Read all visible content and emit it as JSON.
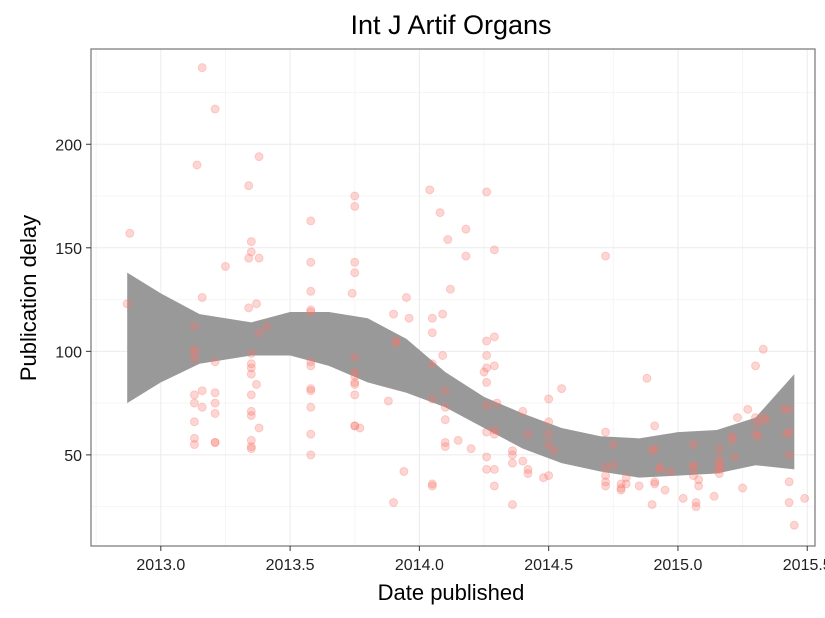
{
  "chart_data": {
    "type": "scatter",
    "title": "Int J Artif Organs",
    "xlabel": "Date published",
    "ylabel": "Publication delay",
    "xlim": [
      2012.73,
      2015.53
    ],
    "ylim": [
      6,
      246
    ],
    "xticks": [
      2013.0,
      2013.5,
      2014.0,
      2014.5,
      2015.0,
      2015.5
    ],
    "xtick_labels": [
      "2013.0",
      "2013.5",
      "2014.0",
      "2014.5",
      "2015.0",
      "2015.5"
    ],
    "yticks": [
      50,
      100,
      150,
      200
    ],
    "ytick_labels": [
      "50",
      "100",
      "150",
      "200"
    ],
    "grid": true,
    "point_color": "#f8766d",
    "band_color": "#999999",
    "points": [
      [
        2012.87,
        123
      ],
      [
        2012.88,
        157
      ],
      [
        2013.13,
        55
      ],
      [
        2013.13,
        58
      ],
      [
        2013.13,
        66
      ],
      [
        2013.13,
        75
      ],
      [
        2013.13,
        79
      ],
      [
        2013.13,
        96
      ],
      [
        2013.13,
        99
      ],
      [
        2013.13,
        101
      ],
      [
        2013.13,
        112
      ],
      [
        2013.14,
        190
      ],
      [
        2013.16,
        237
      ],
      [
        2013.16,
        126
      ],
      [
        2013.16,
        81
      ],
      [
        2013.16,
        73
      ],
      [
        2013.21,
        217
      ],
      [
        2013.21,
        95
      ],
      [
        2013.21,
        80
      ],
      [
        2013.21,
        75
      ],
      [
        2013.21,
        70
      ],
      [
        2013.21,
        56
      ],
      [
        2013.21,
        56
      ],
      [
        2013.25,
        141
      ],
      [
        2013.34,
        180
      ],
      [
        2013.35,
        153
      ],
      [
        2013.35,
        148
      ],
      [
        2013.34,
        145
      ],
      [
        2013.34,
        121
      ],
      [
        2013.35,
        99
      ],
      [
        2013.35,
        94
      ],
      [
        2013.35,
        92
      ],
      [
        2013.35,
        89
      ],
      [
        2013.35,
        79
      ],
      [
        2013.35,
        71
      ],
      [
        2013.35,
        69
      ],
      [
        2013.35,
        57
      ],
      [
        2013.35,
        54
      ],
      [
        2013.35,
        53
      ],
      [
        2013.37,
        123
      ],
      [
        2013.37,
        84
      ],
      [
        2013.38,
        194
      ],
      [
        2013.38,
        145
      ],
      [
        2013.38,
        109
      ],
      [
        2013.38,
        63
      ],
      [
        2013.41,
        112
      ],
      [
        2013.58,
        163
      ],
      [
        2013.58,
        143
      ],
      [
        2013.58,
        129
      ],
      [
        2013.58,
        120
      ],
      [
        2013.58,
        119
      ],
      [
        2013.58,
        95
      ],
      [
        2013.58,
        93
      ],
      [
        2013.58,
        82
      ],
      [
        2013.58,
        81
      ],
      [
        2013.58,
        73
      ],
      [
        2013.58,
        60
      ],
      [
        2013.58,
        50
      ],
      [
        2013.74,
        128
      ],
      [
        2013.75,
        175
      ],
      [
        2013.75,
        170
      ],
      [
        2013.75,
        143
      ],
      [
        2013.75,
        138
      ],
      [
        2013.75,
        97
      ],
      [
        2013.75,
        90
      ],
      [
        2013.75,
        88
      ],
      [
        2013.75,
        85
      ],
      [
        2013.75,
        84
      ],
      [
        2013.75,
        79
      ],
      [
        2013.75,
        64
      ],
      [
        2013.75,
        64
      ],
      [
        2013.77,
        63
      ],
      [
        2013.88,
        76
      ],
      [
        2013.9,
        27
      ],
      [
        2013.9,
        118
      ],
      [
        2013.91,
        105
      ],
      [
        2013.91,
        104
      ],
      [
        2013.94,
        42
      ],
      [
        2013.95,
        126
      ],
      [
        2013.96,
        116
      ],
      [
        2014.04,
        178
      ],
      [
        2014.05,
        116
      ],
      [
        2014.05,
        109
      ],
      [
        2014.05,
        94
      ],
      [
        2014.05,
        77
      ],
      [
        2014.05,
        36
      ],
      [
        2014.05,
        35
      ],
      [
        2014.08,
        167
      ],
      [
        2014.09,
        118
      ],
      [
        2014.09,
        98
      ],
      [
        2014.1,
        81
      ],
      [
        2014.1,
        73
      ],
      [
        2014.1,
        67
      ],
      [
        2014.1,
        56
      ],
      [
        2014.1,
        54
      ],
      [
        2014.11,
        154
      ],
      [
        2014.12,
        130
      ],
      [
        2014.15,
        57
      ],
      [
        2014.18,
        159
      ],
      [
        2014.18,
        146
      ],
      [
        2014.2,
        53
      ],
      [
        2014.26,
        177
      ],
      [
        2014.26,
        105
      ],
      [
        2014.26,
        98
      ],
      [
        2014.26,
        92
      ],
      [
        2014.25,
        90
      ],
      [
        2014.26,
        85
      ],
      [
        2014.26,
        74
      ],
      [
        2014.26,
        61
      ],
      [
        2014.26,
        49
      ],
      [
        2014.26,
        43
      ],
      [
        2014.29,
        149
      ],
      [
        2014.29,
        107
      ],
      [
        2014.29,
        93
      ],
      [
        2014.29,
        62
      ],
      [
        2014.29,
        60
      ],
      [
        2014.29,
        43
      ],
      [
        2014.29,
        35
      ],
      [
        2014.3,
        75
      ],
      [
        2014.36,
        46
      ],
      [
        2014.36,
        50
      ],
      [
        2014.36,
        52
      ],
      [
        2014.36,
        26
      ],
      [
        2014.4,
        71
      ],
      [
        2014.4,
        47
      ],
      [
        2014.42,
        60
      ],
      [
        2014.42,
        43
      ],
      [
        2014.42,
        41
      ],
      [
        2014.48,
        39
      ],
      [
        2014.5,
        77
      ],
      [
        2014.5,
        66
      ],
      [
        2014.5,
        60
      ],
      [
        2014.5,
        55
      ],
      [
        2014.5,
        40
      ],
      [
        2014.52,
        52
      ],
      [
        2014.55,
        82
      ],
      [
        2014.72,
        146
      ],
      [
        2014.72,
        61
      ],
      [
        2014.72,
        44
      ],
      [
        2014.72,
        40
      ],
      [
        2014.72,
        37
      ],
      [
        2014.72,
        35
      ],
      [
        2014.75,
        55
      ],
      [
        2014.75,
        45
      ],
      [
        2014.78,
        36
      ],
      [
        2014.78,
        34
      ],
      [
        2014.78,
        33
      ],
      [
        2014.8,
        39
      ],
      [
        2014.8,
        36
      ],
      [
        2014.85,
        35
      ],
      [
        2014.88,
        87
      ],
      [
        2014.9,
        26
      ],
      [
        2014.9,
        52
      ],
      [
        2014.91,
        64
      ],
      [
        2014.91,
        53
      ],
      [
        2014.91,
        37
      ],
      [
        2014.91,
        36
      ],
      [
        2014.93,
        44
      ],
      [
        2014.93,
        43
      ],
      [
        2014.95,
        33
      ],
      [
        2014.97,
        42
      ],
      [
        2015.02,
        29
      ],
      [
        2015.06,
        55
      ],
      [
        2015.06,
        45
      ],
      [
        2015.06,
        44
      ],
      [
        2015.06,
        40
      ],
      [
        2015.07,
        27
      ],
      [
        2015.07,
        25
      ],
      [
        2015.08,
        38
      ],
      [
        2015.08,
        35
      ],
      [
        2015.14,
        30
      ],
      [
        2015.16,
        53
      ],
      [
        2015.16,
        48
      ],
      [
        2015.16,
        46
      ],
      [
        2015.16,
        44
      ],
      [
        2015.16,
        43
      ],
      [
        2015.16,
        41
      ],
      [
        2015.21,
        59
      ],
      [
        2015.21,
        57
      ],
      [
        2015.22,
        49
      ],
      [
        2015.23,
        68
      ],
      [
        2015.25,
        34
      ],
      [
        2015.27,
        72
      ],
      [
        2015.3,
        93
      ],
      [
        2015.3,
        68
      ],
      [
        2015.3,
        60
      ],
      [
        2015.31,
        65
      ],
      [
        2015.31,
        59
      ],
      [
        2015.33,
        101
      ],
      [
        2015.33,
        68
      ],
      [
        2015.34,
        67
      ],
      [
        2015.41,
        72
      ],
      [
        2015.42,
        60
      ],
      [
        2015.43,
        72
      ],
      [
        2015.43,
        50
      ],
      [
        2015.43,
        37
      ],
      [
        2015.43,
        27
      ],
      [
        2015.43,
        61
      ],
      [
        2015.45,
        16
      ],
      [
        2015.49,
        29
      ]
    ],
    "band": {
      "x": [
        2012.87,
        2013.0,
        2013.15,
        2013.35,
        2013.5,
        2013.65,
        2013.8,
        2013.95,
        2014.1,
        2014.25,
        2014.4,
        2014.55,
        2014.7,
        2014.85,
        2015.0,
        2015.15,
        2015.3,
        2015.45
      ],
      "upper": [
        138,
        128,
        118,
        114,
        119,
        119,
        116,
        106,
        90,
        78,
        70,
        63,
        59,
        58,
        61,
        62,
        68,
        89
      ],
      "lower": [
        75,
        85,
        94,
        98,
        98,
        93,
        85,
        80,
        73,
        63,
        53,
        46,
        42,
        39,
        40,
        41,
        45,
        43
      ]
    }
  }
}
